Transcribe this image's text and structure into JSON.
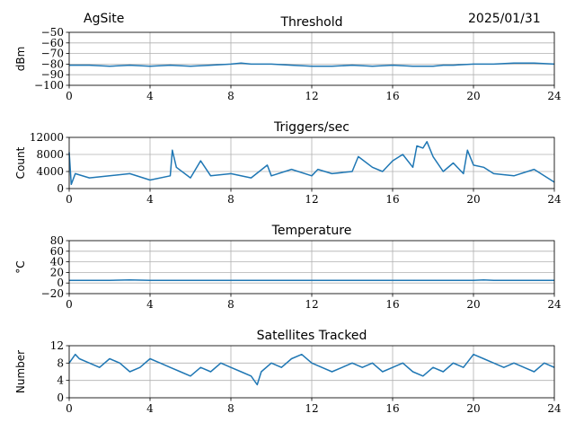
{
  "header": {
    "site": "AgSite",
    "date": "2025/01/31"
  },
  "colors": {
    "line": "#1f77b4",
    "grid": "#b0b0b0",
    "axis": "#000000"
  },
  "chart_data": [
    {
      "type": "line",
      "title": "Threshold",
      "ylabel": "dBm",
      "xlim": [
        0,
        24
      ],
      "ylim": [
        -100,
        -50
      ],
      "xticks": [
        0,
        4,
        8,
        12,
        16,
        20,
        24
      ],
      "yticks": [
        -100,
        -90,
        -80,
        -70,
        -60,
        -50
      ],
      "grid": true,
      "series": [
        {
          "x": [
            0,
            1,
            2,
            3,
            4,
            5,
            6,
            7,
            8,
            8.5,
            9,
            10,
            11,
            12,
            13,
            14,
            15,
            16,
            17,
            18,
            18.5,
            19,
            20,
            21,
            22,
            23,
            24
          ],
          "values": [
            -81,
            -81,
            -82,
            -81,
            -82,
            -81,
            -82,
            -81,
            -80,
            -79,
            -80,
            -80,
            -81,
            -82,
            -82,
            -81,
            -82,
            -81,
            -82,
            -82,
            -81,
            -81,
            -80,
            -80,
            -79,
            -79,
            -80
          ]
        }
      ]
    },
    {
      "type": "line",
      "title": "Triggers/sec",
      "ylabel": "Count",
      "xlim": [
        0,
        24
      ],
      "ylim": [
        0,
        12000
      ],
      "xticks": [
        0,
        4,
        8,
        12,
        16,
        20,
        24
      ],
      "yticks": [
        0,
        4000,
        8000,
        12000
      ],
      "grid": true,
      "series": [
        {
          "x": [
            0,
            0.1,
            0.3,
            1,
            2,
            3,
            4,
            5,
            5.1,
            5.3,
            6,
            6.5,
            7,
            8,
            9,
            9.8,
            10,
            11,
            12,
            12.3,
            13,
            14,
            14.3,
            15,
            15.5,
            16,
            16.5,
            17,
            17.2,
            17.5,
            17.7,
            18,
            18.5,
            19,
            19.5,
            19.7,
            20,
            20.5,
            21,
            22,
            23,
            24
          ],
          "values": [
            8500,
            1000,
            3500,
            2500,
            3000,
            3500,
            2000,
            3000,
            9000,
            5000,
            2500,
            6500,
            3000,
            3500,
            2500,
            5500,
            3000,
            4500,
            3000,
            4500,
            3500,
            4000,
            7500,
            5000,
            4000,
            6500,
            8000,
            5000,
            10000,
            9500,
            11000,
            7500,
            4000,
            6000,
            3500,
            9000,
            5500,
            5000,
            3500,
            3000,
            4500,
            1500
          ]
        }
      ]
    },
    {
      "type": "line",
      "title": "Temperature",
      "ylabel": "°C",
      "xlim": [
        0,
        24
      ],
      "ylim": [
        -20,
        80
      ],
      "xticks": [
        0,
        4,
        8,
        12,
        16,
        20,
        24
      ],
      "yticks": [
        -20,
        0,
        20,
        40,
        60,
        80
      ],
      "grid": true,
      "series": [
        {
          "x": [
            0,
            2,
            3,
            4,
            8,
            12,
            16,
            20,
            20.5,
            21,
            24
          ],
          "values": [
            5,
            5,
            6,
            5,
            5,
            5,
            5,
            5,
            6,
            5,
            5
          ]
        }
      ]
    },
    {
      "type": "line",
      "title": "Satellites Tracked",
      "ylabel": "Number",
      "xlim": [
        0,
        24
      ],
      "ylim": [
        0,
        12
      ],
      "xticks": [
        0,
        4,
        8,
        12,
        16,
        20,
        24
      ],
      "yticks": [
        0,
        4,
        8,
        12
      ],
      "grid": true,
      "series": [
        {
          "x": [
            0,
            0.3,
            0.5,
            1,
            1.5,
            2,
            2.5,
            3,
            3.5,
            4,
            4.5,
            5,
            5.5,
            6,
            6.5,
            7,
            7.5,
            8,
            8.5,
            9,
            9.3,
            9.5,
            10,
            10.5,
            11,
            11.5,
            12,
            12.5,
            13,
            13.5,
            14,
            14.5,
            15,
            15.5,
            16,
            16.5,
            17,
            17.5,
            18,
            18.5,
            19,
            19.5,
            20,
            20.5,
            21,
            21.5,
            22,
            22.5,
            23,
            23.5,
            24
          ],
          "values": [
            8,
            10,
            9,
            8,
            7,
            9,
            8,
            6,
            7,
            9,
            8,
            7,
            6,
            5,
            7,
            6,
            8,
            7,
            6,
            5,
            3,
            6,
            8,
            7,
            9,
            10,
            8,
            7,
            6,
            7,
            8,
            7,
            8,
            6,
            7,
            8,
            6,
            5,
            7,
            6,
            8,
            7,
            10,
            9,
            8,
            7,
            8,
            7,
            6,
            8,
            7
          ]
        }
      ]
    }
  ]
}
